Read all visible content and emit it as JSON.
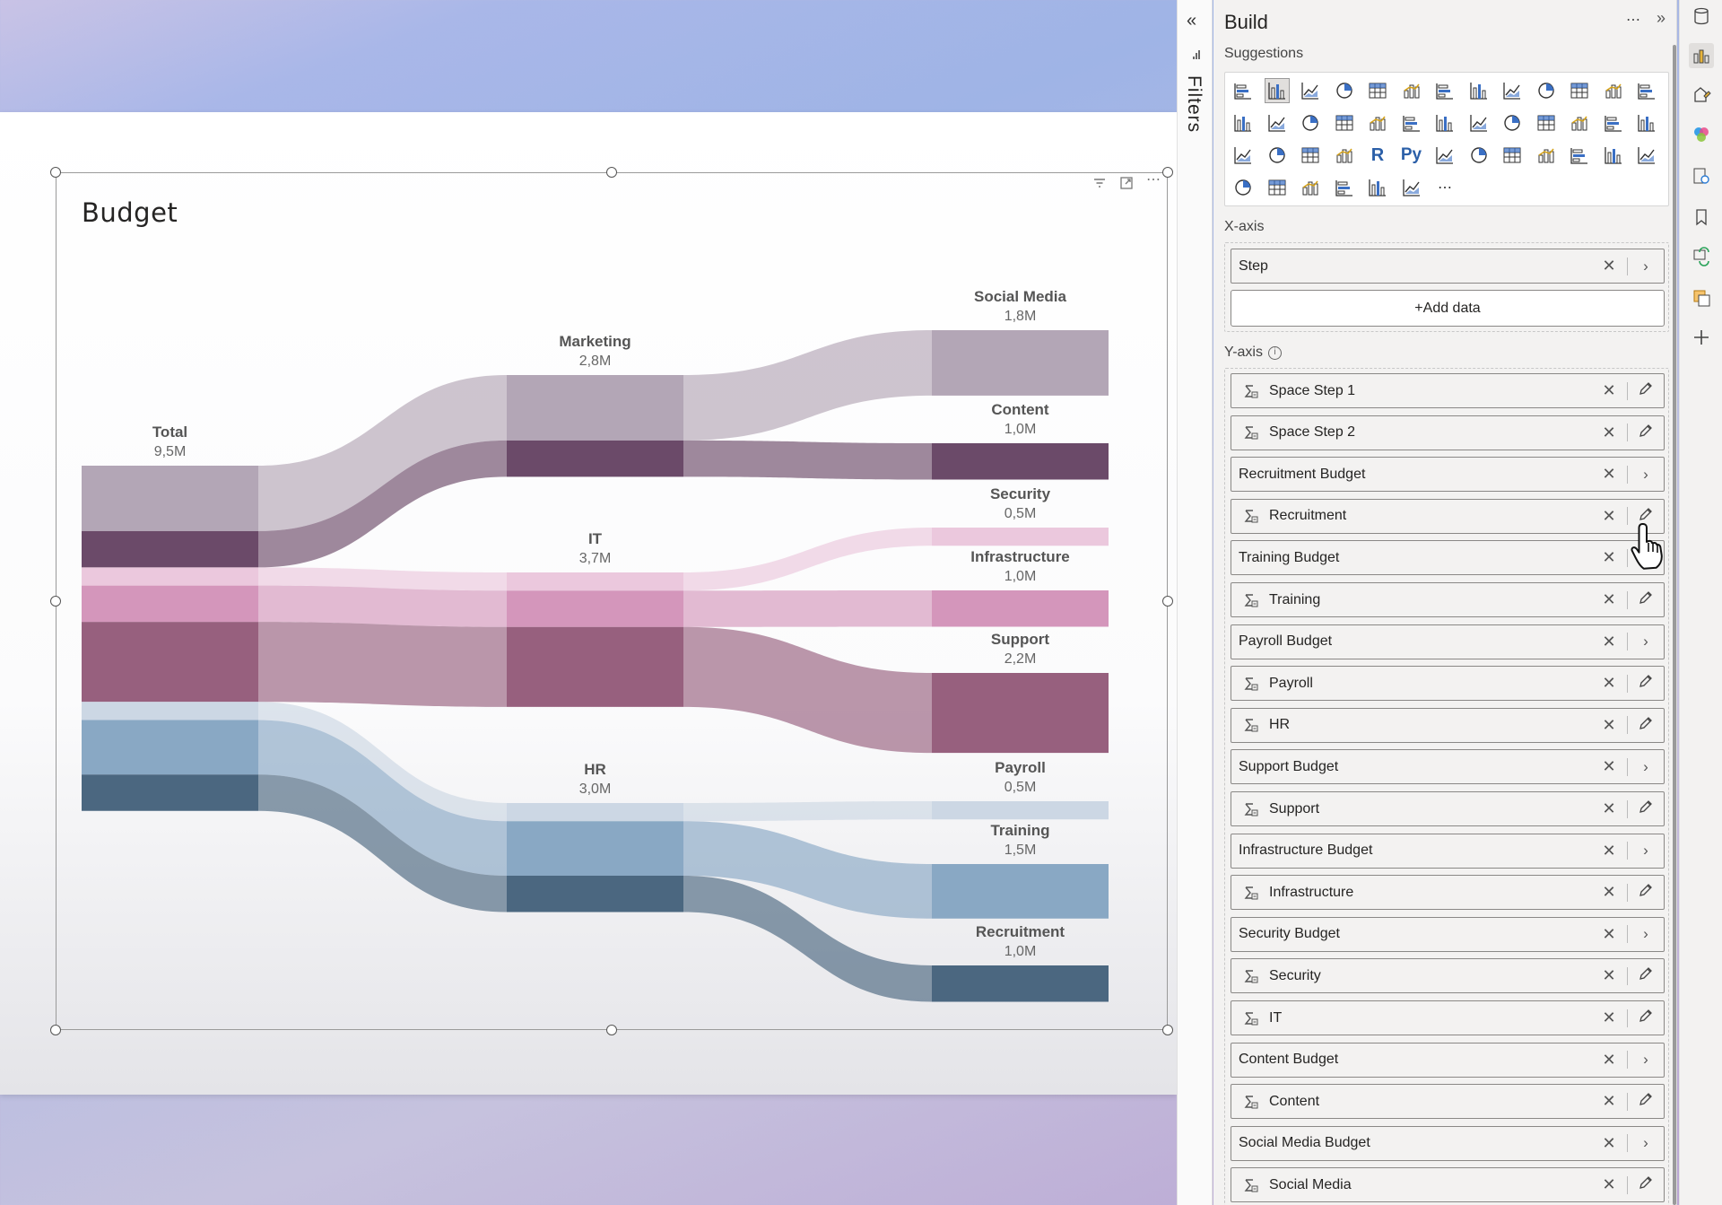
{
  "visual": {
    "title": "Budget"
  },
  "chart_data": {
    "type": "sankey",
    "unit": "M",
    "nodes": [
      {
        "id": "total",
        "label": "Total",
        "value_label": "9,5M",
        "value": 9.5,
        "color": "#b3a6b6"
      },
      {
        "id": "marketing",
        "label": "Marketing",
        "value_label": "2,8M",
        "value": 2.8,
        "color": "#b3a6b6"
      },
      {
        "id": "it",
        "label": "IT",
        "value_label": "3,7M",
        "value": 3.7,
        "color": "#d496bb"
      },
      {
        "id": "hr",
        "label": "HR",
        "value_label": "3,0M",
        "value": 3.0,
        "color": "#89a8c4"
      },
      {
        "id": "social_media",
        "label": "Social Media",
        "value_label": "1,8M",
        "value": 1.8,
        "color": "#b3a6b6"
      },
      {
        "id": "content",
        "label": "Content",
        "value_label": "1,0M",
        "value": 1.0,
        "color": "#6b4a69"
      },
      {
        "id": "security",
        "label": "Security",
        "value_label": "0,5M",
        "value": 0.5,
        "color": "#ebc8dd"
      },
      {
        "id": "infrastructure",
        "label": "Infrastructure",
        "value_label": "1,0M",
        "value": 1.0,
        "color": "#d496bb"
      },
      {
        "id": "support",
        "label": "Support",
        "value_label": "2,2M",
        "value": 2.2,
        "color": "#97607e"
      },
      {
        "id": "payroll",
        "label": "Payroll",
        "value_label": "0,5M",
        "value": 0.5,
        "color": "#ccd7e4"
      },
      {
        "id": "training",
        "label": "Training",
        "value_label": "1,5M",
        "value": 1.5,
        "color": "#89a8c4"
      },
      {
        "id": "recruitment",
        "label": "Recruitment",
        "value_label": "1,0M",
        "value": 1.0,
        "color": "#4b6780"
      }
    ],
    "links": [
      {
        "source": "total",
        "target": "marketing",
        "stream": "social_media",
        "value": 1.8,
        "color": "#b3a6b6"
      },
      {
        "source": "total",
        "target": "marketing",
        "stream": "content",
        "value": 1.0,
        "color": "#6b4a69"
      },
      {
        "source": "total",
        "target": "it",
        "stream": "security",
        "value": 0.5,
        "color": "#ebc8dd"
      },
      {
        "source": "total",
        "target": "it",
        "stream": "infrastructure",
        "value": 1.0,
        "color": "#d496bb"
      },
      {
        "source": "total",
        "target": "it",
        "stream": "support",
        "value": 2.2,
        "color": "#97607e"
      },
      {
        "source": "total",
        "target": "hr",
        "stream": "payroll",
        "value": 0.5,
        "color": "#ccd7e4"
      },
      {
        "source": "total",
        "target": "hr",
        "stream": "training",
        "value": 1.5,
        "color": "#89a8c4"
      },
      {
        "source": "total",
        "target": "hr",
        "stream": "recruitment",
        "value": 1.0,
        "color": "#4b6780"
      },
      {
        "source": "marketing",
        "target": "social_media",
        "value": 1.8,
        "color": "#b3a6b6"
      },
      {
        "source": "marketing",
        "target": "content",
        "value": 1.0,
        "color": "#6b4a69"
      },
      {
        "source": "it",
        "target": "security",
        "value": 0.5,
        "color": "#ebc8dd"
      },
      {
        "source": "it",
        "target": "infrastructure",
        "value": 1.0,
        "color": "#d496bb"
      },
      {
        "source": "it",
        "target": "support",
        "value": 2.2,
        "color": "#97607e"
      },
      {
        "source": "hr",
        "target": "payroll",
        "value": 0.5,
        "color": "#ccd7e4"
      },
      {
        "source": "hr",
        "target": "training",
        "value": 1.5,
        "color": "#89a8c4"
      },
      {
        "source": "hr",
        "target": "recruitment",
        "value": 1.0,
        "color": "#4b6780"
      }
    ]
  },
  "filters_pane": {
    "label": "Filters"
  },
  "build_pane": {
    "title": "Build",
    "suggestions_label": "Suggestions",
    "x_axis": {
      "label": "X-axis",
      "fields": [
        {
          "label": "Step",
          "measure": false,
          "action": "expand"
        }
      ],
      "add_data_label": "+Add data"
    },
    "y_axis": {
      "label": "Y-axis",
      "fields": [
        {
          "label": "Space Step 1",
          "measure": true,
          "action": "edit"
        },
        {
          "label": "Space Step 2",
          "measure": true,
          "action": "edit"
        },
        {
          "label": "Recruitment Budget",
          "measure": false,
          "action": "expand"
        },
        {
          "label": "Recruitment",
          "measure": true,
          "action": "edit"
        },
        {
          "label": "Training Budget",
          "measure": false,
          "action": "expand"
        },
        {
          "label": "Training",
          "measure": true,
          "action": "edit"
        },
        {
          "label": "Payroll Budget",
          "measure": false,
          "action": "expand"
        },
        {
          "label": "Payroll",
          "measure": true,
          "action": "edit"
        },
        {
          "label": "HR",
          "measure": true,
          "action": "edit"
        },
        {
          "label": "Support Budget",
          "measure": false,
          "action": "expand"
        },
        {
          "label": "Support",
          "measure": true,
          "action": "edit"
        },
        {
          "label": "Infrastructure Budget",
          "measure": false,
          "action": "expand"
        },
        {
          "label": "Infrastructure",
          "measure": true,
          "action": "edit"
        },
        {
          "label": "Security Budget",
          "measure": false,
          "action": "expand"
        },
        {
          "label": "Security",
          "measure": true,
          "action": "edit"
        },
        {
          "label": "IT",
          "measure": true,
          "action": "edit"
        },
        {
          "label": "Content Budget",
          "measure": false,
          "action": "expand"
        },
        {
          "label": "Content",
          "measure": true,
          "action": "edit"
        },
        {
          "label": "Social Media Budget",
          "measure": false,
          "action": "expand"
        },
        {
          "label": "Social Media",
          "measure": true,
          "action": "edit"
        }
      ]
    }
  },
  "visual_types": [
    "stacked-bar-chart-icon",
    "stacked-column-chart-icon",
    "clustered-bar-chart-icon",
    "clustered-column-chart-icon",
    "100-stacked-bar-chart-icon",
    "100-stacked-column-chart-icon",
    "line-chart-icon",
    "area-chart-icon",
    "stacked-area-chart-icon",
    "100-stacked-area-chart-icon",
    "line-and-stacked-column-icon",
    "line-and-clustered-column-icon",
    "ribbon-chart-icon",
    "waterfall-chart-icon",
    "funnel-chart-icon",
    "scatter-chart-icon",
    "pie-chart-icon",
    "donut-chart-icon",
    "treemap-icon",
    "map-icon",
    "filled-map-icon",
    "shape-map-icon",
    "azure-map-icon",
    "gauge-icon",
    "card-icon",
    "multi-row-card-icon",
    "kpi-icon",
    "slicer-icon",
    "table-icon",
    "matrix-icon",
    "r-visual-icon",
    "python-visual-icon",
    "key-influencers-icon",
    "decomposition-tree-icon",
    "qa-icon",
    "narrative-icon",
    "paginated-report-icon",
    "metrics-icon",
    "new-card-icon",
    "power-apps-icon",
    "power-automate-icon",
    "new-slicer-icon",
    "sankey-custom-visual-icon",
    "power-apps-diamond-icon",
    "arrow-custom-visual-icon",
    "more-visuals-icon"
  ],
  "right_rail": [
    "data-pane-icon",
    "build-pane-icon",
    "format-pane-icon",
    "copilot-icon",
    "analytics-pane-icon",
    "bookmarks-icon",
    "sync-slicers-icon",
    "selection-pane-icon",
    "add-pane-icon"
  ]
}
